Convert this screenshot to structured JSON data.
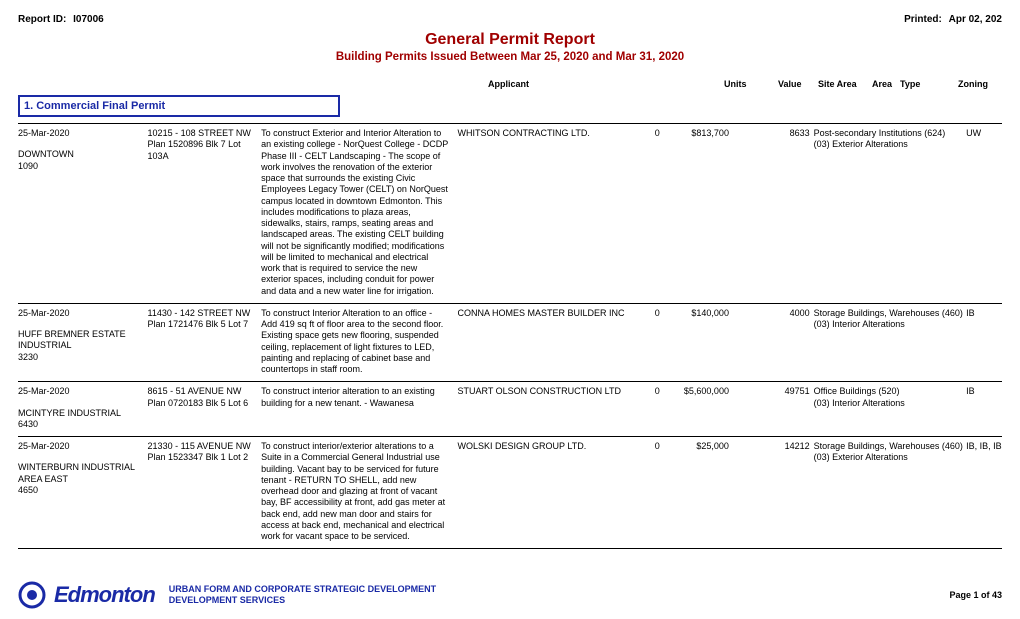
{
  "header": {
    "report_id_label": "Report ID:",
    "report_id": "I07006",
    "printed_label": "Printed:",
    "printed_date": "Apr 02, 202",
    "title": "General Permit Report",
    "subtitle": "Building Permits Issued Between Mar 25, 2020 and Mar 31, 2020"
  },
  "columns": {
    "applicant": "Applicant",
    "units": "Units",
    "value": "Value",
    "site_area": "Site Area",
    "area": "Area",
    "type": "Type",
    "zoning": "Zoning"
  },
  "section": "1. Commercial Final Permit",
  "rows": [
    {
      "date": "25-Mar-2020",
      "neighbourhood": "DOWNTOWN",
      "nbhd_code": "1090",
      "address": "10215 - 108 STREET NW",
      "plan": "Plan 1520896 Blk 7 Lot 103A",
      "description": "To construct Exterior and Interior Alteration to an existing college - NorQuest College - DCDP Phase III - CELT Landscaping - The scope of work involves the renovation of the exterior space that surrounds the existing Civic Employees Legacy Tower (CELT) on NorQuest campus located in downtown Edmonton. This includes modifications to plaza areas, sidewalks, stairs, ramps, seating areas and landscaped areas. The existing CELT building will not be significantly modified; modifications will be limited to mechanical and electrical work that is required to service the new exterior spaces, including conduit for power and data and a new water line for irrigation.",
      "applicant": "WHITSON CONTRACTING LTD.",
      "units": "0",
      "value": "$813,700",
      "site_area": "",
      "area": "8633",
      "type_line1": "Post-secondary Institutions (624)",
      "type_line2": "(03) Exterior Alterations",
      "zoning": "UW"
    },
    {
      "date": "25-Mar-2020",
      "neighbourhood": "HUFF BREMNER ESTATE INDUSTRIAL",
      "nbhd_code": "3230",
      "address": "11430 - 142 STREET NW",
      "plan": "Plan 1721476 Blk 5 Lot 7",
      "description": "To construct Interior Alteration to an office - Add 419 sq ft of floor area to the second floor. Existing space gets new flooring, suspended ceiling, replacement of light fixtures to LED, painting and replacing of cabinet base and countertops in staff room.",
      "applicant": "CONNA HOMES MASTER BUILDER INC",
      "units": "0",
      "value": "$140,000",
      "site_area": "",
      "area": "4000",
      "type_line1": "Storage Buildings, Warehouses (460)",
      "type_line2": "(03) Interior Alterations",
      "zoning": "IB"
    },
    {
      "date": "25-Mar-2020",
      "neighbourhood": "MCINTYRE INDUSTRIAL",
      "nbhd_code": "6430",
      "address": "8615 - 51 AVENUE NW",
      "plan": "Plan 0720183 Blk 5 Lot 6",
      "description": "To construct interior alteration to an existing building for a new tenant. - Wawanesa",
      "applicant": "STUART OLSON CONSTRUCTION LTD",
      "units": "0",
      "value": "$5,600,000",
      "site_area": "",
      "area": "49751",
      "type_line1": "Office Buildings (520)",
      "type_line2": "(03) Interior Alterations",
      "zoning": "IB"
    },
    {
      "date": "25-Mar-2020",
      "neighbourhood": "WINTERBURN INDUSTRIAL AREA EAST",
      "nbhd_code": "4650",
      "address": "21330 - 115 AVENUE NW",
      "plan": "Plan 1523347 Blk 1 Lot 2",
      "description": "To construct interior/exterior alterations to a Suite in a Commercial General Industrial use building. Vacant bay to be serviced for future tenant - RETURN TO SHELL, add new overhead door and glazing at front of vacant bay, BF accessibility at front, add gas meter at back end, add new man door and stairs for access at back end, mechanical and electrical work for vacant space to be serviced.",
      "applicant": "WOLSKI DESIGN GROUP LTD.",
      "units": "0",
      "value": "$25,000",
      "site_area": "",
      "area": "14212",
      "type_line1": "Storage Buildings, Warehouses (460)",
      "type_line2": "(03) Exterior Alterations",
      "zoning": "IB, IB, IB"
    }
  ],
  "footer": {
    "logo_text": "Edmonton",
    "dept_line1": "URBAN FORM AND CORPORATE STRATEGIC DEVELOPMENT",
    "dept_line2": "DEVELOPMENT SERVICES",
    "page": "Page 1 of 43"
  },
  "style": {
    "accent_color": "#a00000",
    "brand_color": "#1a2aa6",
    "text_color": "#000000",
    "background": "#ffffff",
    "body_font_size_pt": 9,
    "title_font_size_pt": 16
  }
}
